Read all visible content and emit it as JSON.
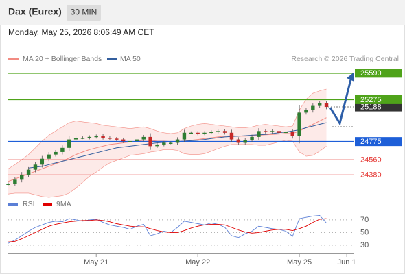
{
  "header": {
    "title": "Dax (Eurex)",
    "interval": "30 MIN",
    "timestamp": "Monday, May 25, 2026 8:06:49 AM CET"
  },
  "chart_data": [
    {
      "type": "candlestick",
      "credit": "Research © 2026 Trading Central",
      "xlim": [
        0,
        51
      ],
      "ylim": [
        24135,
        25850
      ],
      "up_color": "#2e7d32",
      "down_color": "#c62828",
      "close": [
        24270,
        24320,
        24380,
        24440,
        24500,
        24570,
        24620,
        24650,
        24700,
        24800,
        24820,
        24820,
        24830,
        24840,
        24820,
        24810,
        24800,
        24780,
        24780,
        24800,
        24830,
        24720,
        24740,
        24760,
        24760,
        24800,
        24880,
        24880,
        24870,
        24880,
        24890,
        24900,
        24880,
        24800,
        24760,
        24790,
        24830,
        24900,
        24890,
        24900,
        24880,
        24890,
        24840,
        25120,
        25150,
        25200,
        25230,
        25188
      ],
      "series": [
        {
          "name": "MA 20 + Bollinger Bands",
          "color": "#f28b82",
          "values": [
            24300,
            24330,
            24360,
            24390,
            24420,
            24450,
            24480,
            24510,
            24540,
            24580,
            24620,
            24650,
            24680,
            24700,
            24720,
            24740,
            24750,
            24760,
            24770,
            24780,
            24790,
            24790,
            24780,
            24780,
            24775,
            24775,
            24780,
            24790,
            24800,
            24810,
            24820,
            24830,
            24840,
            24845,
            24840,
            24840,
            24845,
            24850,
            24855,
            24860,
            24865,
            24870,
            24870,
            24900,
            24940,
            24980,
            25020,
            25060
          ],
          "upper": [
            24450,
            24500,
            24560,
            24620,
            24700,
            24780,
            24850,
            24900,
            24950,
            25000,
            25020,
            25010,
            25000,
            24990,
            24970,
            24960,
            24950,
            24940,
            24930,
            24940,
            24950,
            24930,
            24900,
            24880,
            24870,
            24880,
            24930,
            24960,
            24980,
            24990,
            24980,
            24970,
            24960,
            24950,
            24940,
            24940,
            24950,
            24970,
            24980,
            24970,
            24960,
            24950,
            24960,
            25150,
            25280,
            25350,
            25380,
            25400
          ],
          "lower": [
            24150,
            24160,
            24160,
            24160,
            24140,
            24120,
            24110,
            24120,
            24130,
            24160,
            24220,
            24290,
            24360,
            24410,
            24470,
            24520,
            24550,
            24580,
            24610,
            24620,
            24630,
            24650,
            24660,
            24680,
            24680,
            24670,
            24630,
            24620,
            24620,
            24630,
            24660,
            24690,
            24720,
            24740,
            24740,
            24740,
            24740,
            24730,
            24730,
            24750,
            24770,
            24790,
            24780,
            24650,
            24600,
            24610,
            24660,
            24720
          ]
        },
        {
          "name": "MA 50",
          "color": "#335e9e",
          "values": [
            null,
            null,
            null,
            24460,
            24470,
            24480,
            24500,
            24520,
            24540,
            24560,
            24580,
            24600,
            24620,
            24640,
            24660,
            24680,
            24700,
            24710,
            24720,
            24730,
            24740,
            24750,
            24760,
            24765,
            24770,
            24775,
            24780,
            24785,
            24790,
            24800,
            24810,
            24820,
            24830,
            24835,
            24840,
            24845,
            24850,
            24855,
            24860,
            24870,
            24880,
            24890,
            24900,
            24915,
            24940,
            24960,
            24980,
            25000
          ]
        }
      ],
      "levels": [
        {
          "value": 25590,
          "color": "#4fa31a",
          "line": true,
          "tag": true
        },
        {
          "value": 25188,
          "color": "#333333",
          "line": false,
          "tag": true
        },
        {
          "value": 25275,
          "color": "#4fa31a",
          "line": true,
          "tag": true
        },
        {
          "value": 24775,
          "color": "#1e5fd8",
          "line": true,
          "tag": true
        },
        {
          "value": 24560,
          "color": "#e53935",
          "line": true,
          "tag": false
        },
        {
          "value": 24380,
          "color": "#e53935",
          "line": true,
          "tag": false
        }
      ]
    },
    {
      "type": "line",
      "xlim": [
        0,
        51
      ],
      "xticks": [
        {
          "value": 13,
          "label": "May 21"
        },
        {
          "value": 28,
          "label": "May 22"
        },
        {
          "value": 43,
          "label": "May 25"
        },
        {
          "value": 50,
          "label": "Jun 1"
        }
      ],
      "ylim": [
        19,
        84
      ],
      "yticks": [
        30,
        50,
        70
      ],
      "series": [
        {
          "name": "RSI",
          "color": "#5b7fd6",
          "values": [
            33,
            38,
            45,
            52,
            58,
            62,
            66,
            68,
            67,
            72,
            70,
            68,
            70,
            71,
            66,
            62,
            60,
            58,
            55,
            60,
            63,
            45,
            48,
            52,
            50,
            58,
            68,
            66,
            64,
            62,
            65,
            63,
            58,
            45,
            42,
            48,
            52,
            60,
            58,
            56,
            55,
            52,
            44,
            72,
            74,
            76,
            77,
            65
          ]
        },
        {
          "name": "9MA",
          "color": "#e00000",
          "values": [
            35,
            36,
            40,
            45,
            50,
            55,
            60,
            63,
            65,
            67,
            68,
            69,
            69,
            70,
            69,
            67,
            64,
            62,
            60,
            59,
            59,
            56,
            53,
            51,
            50,
            50,
            53,
            57,
            60,
            62,
            63,
            63,
            62,
            58,
            54,
            51,
            49,
            50,
            52,
            54,
            55,
            55,
            53,
            56,
            60,
            66,
            71,
            72
          ]
        }
      ]
    }
  ]
}
